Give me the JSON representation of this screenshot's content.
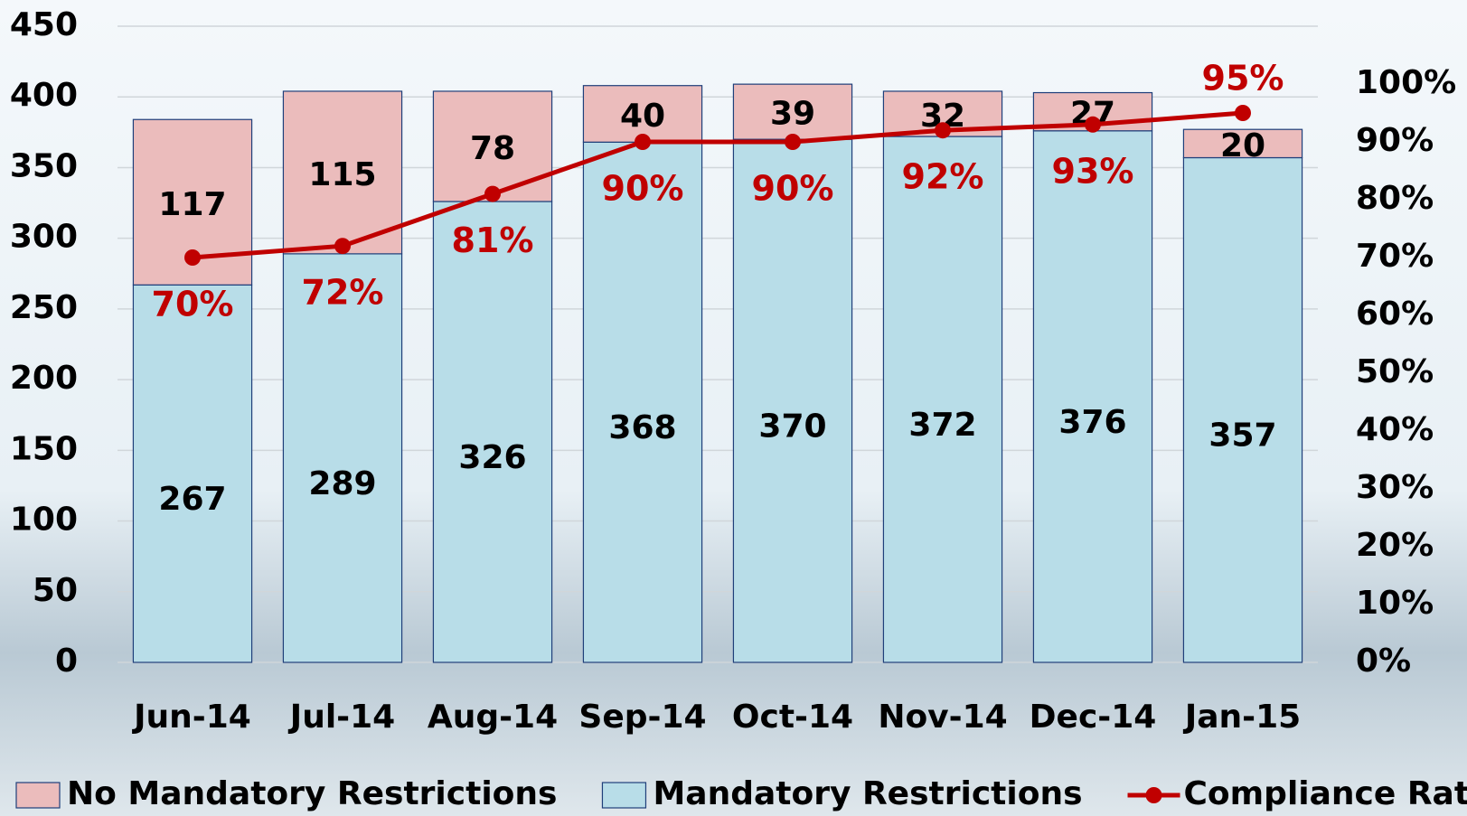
{
  "chart_data": {
    "type": "bar",
    "stacked": true,
    "categories": [
      "Jun-14",
      "Jul-14",
      "Aug-14",
      "Sep-14",
      "Oct-14",
      "Nov-14",
      "Dec-14",
      "Jan-15"
    ],
    "series": [
      {
        "name": "Mandatory Restrictions",
        "color": "#b8dde8",
        "values": [
          267,
          289,
          326,
          368,
          370,
          372,
          376,
          357
        ]
      },
      {
        "name": "No Mandatory Restrictions",
        "color": "#ebbcbc",
        "values": [
          117,
          115,
          78,
          40,
          39,
          32,
          27,
          20
        ]
      },
      {
        "name": "Compliance Rate",
        "type": "line",
        "axis": "y2",
        "color": "#c00000",
        "values": [
          70,
          72,
          81,
          90,
          90,
          92,
          93,
          95
        ],
        "value_labels": [
          "70%",
          "72%",
          "81%",
          "90%",
          "90%",
          "92%",
          "93%",
          "95%"
        ]
      }
    ],
    "legend_order": [
      1,
      0,
      2
    ],
    "ylim": [
      0,
      450
    ],
    "yticks": [
      0,
      50,
      100,
      150,
      200,
      250,
      300,
      350,
      400,
      450
    ],
    "y2lim": [
      0,
      110
    ],
    "y2ticks": [
      {
        "value": 0,
        "label": "0%"
      },
      {
        "value": 10,
        "label": "10%"
      },
      {
        "value": 20,
        "label": "20%"
      },
      {
        "value": 30,
        "label": "30%"
      },
      {
        "value": 40,
        "label": "40%"
      },
      {
        "value": 50,
        "label": "50%"
      },
      {
        "value": 60,
        "label": "60%"
      },
      {
        "value": 70,
        "label": "70%"
      },
      {
        "value": 80,
        "label": "80%"
      },
      {
        "value": 90,
        "label": "90%"
      },
      {
        "value": 100,
        "label": "100%"
      }
    ],
    "grid": true,
    "legend": "bottom"
  }
}
